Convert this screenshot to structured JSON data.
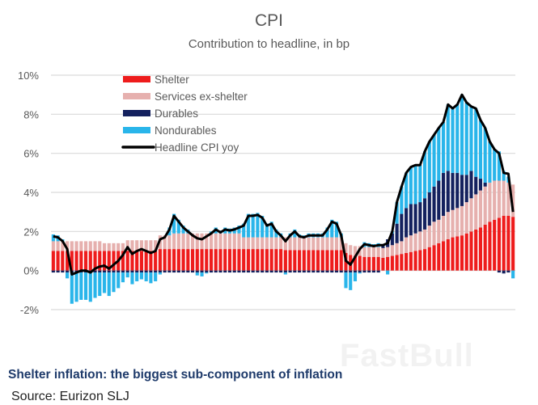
{
  "chart_data": {
    "type": "bar",
    "title": "CPI",
    "subtitle": "Contribution to headline, in bp",
    "ylim": [
      -2,
      10
    ],
    "yticks": [
      "-2%",
      "0%",
      "2%",
      "4%",
      "6%",
      "8%",
      "10%"
    ],
    "ytick_values": [
      -2,
      0,
      2,
      4,
      6,
      8,
      10
    ],
    "grid": true,
    "stacked": true,
    "legend_position": "top-left",
    "series": [
      {
        "name": "Shelter",
        "type": "bar",
        "color": "#ee1c1c",
        "values": [
          1.0,
          1.0,
          1.0,
          1.0,
          1.0,
          1.0,
          1.0,
          1.0,
          1.0,
          1.0,
          1.0,
          1.0,
          1.0,
          1.0,
          1.0,
          1.0,
          1.0,
          1.0,
          1.0,
          1.0,
          1.0,
          1.0,
          1.0,
          1.1,
          1.1,
          1.1,
          1.1,
          1.1,
          1.1,
          1.1,
          1.1,
          1.1,
          1.1,
          1.1,
          1.1,
          1.1,
          1.1,
          1.1,
          1.1,
          1.1,
          1.1,
          1.1,
          1.1,
          1.1,
          1.1,
          1.1,
          1.1,
          1.1,
          1.1,
          1.1,
          1.05,
          1.05,
          1.05,
          1.05,
          1.05,
          1.05,
          1.05,
          1.05,
          1.05,
          1.05,
          1.05,
          1.05,
          1.05,
          0.9,
          0.8,
          0.75,
          0.75,
          0.7,
          0.7,
          0.7,
          0.7,
          0.65,
          0.7,
          0.75,
          0.8,
          0.85,
          0.9,
          0.95,
          1.0,
          1.05,
          1.1,
          1.2,
          1.3,
          1.4,
          1.5,
          1.6,
          1.7,
          1.75,
          1.8,
          1.9,
          2.0,
          2.1,
          2.2,
          2.35,
          2.5,
          2.6,
          2.7,
          2.8,
          2.8,
          2.75
        ]
      },
      {
        "name": "Services ex-shelter",
        "type": "bar",
        "color": "#e6b0ae",
        "values": [
          0.5,
          0.5,
          0.5,
          0.5,
          0.5,
          0.5,
          0.5,
          0.5,
          0.5,
          0.5,
          0.5,
          0.4,
          0.4,
          0.4,
          0.4,
          0.4,
          0.55,
          0.55,
          0.55,
          0.55,
          0.55,
          0.55,
          0.55,
          0.7,
          0.7,
          0.7,
          0.8,
          0.8,
          0.8,
          0.8,
          0.8,
          0.8,
          0.8,
          0.8,
          0.8,
          0.8,
          0.8,
          0.8,
          0.8,
          0.8,
          0.8,
          0.6,
          0.6,
          0.6,
          0.6,
          0.6,
          0.6,
          0.6,
          0.6,
          0.6,
          0.65,
          0.65,
          0.65,
          0.65,
          0.65,
          0.65,
          0.65,
          0.65,
          0.65,
          0.65,
          0.65,
          0.65,
          0.65,
          0.5,
          0.5,
          0.5,
          0.5,
          0.5,
          0.5,
          0.5,
          0.5,
          0.5,
          0.5,
          0.55,
          0.6,
          0.65,
          0.8,
          0.85,
          0.9,
          0.95,
          1.0,
          1.1,
          1.2,
          1.2,
          1.3,
          1.4,
          1.4,
          1.45,
          1.5,
          1.6,
          1.7,
          1.8,
          1.9,
          1.95,
          2.0,
          2.0,
          1.9,
          1.8,
          1.7,
          1.65
        ]
      },
      {
        "name": "Durables",
        "type": "bar",
        "color": "#14215e",
        "values": [
          -0.1,
          -0.1,
          -0.1,
          -0.1,
          -0.1,
          -0.1,
          -0.1,
          -0.1,
          -0.1,
          -0.1,
          -0.1,
          -0.1,
          -0.1,
          -0.1,
          -0.1,
          -0.1,
          -0.1,
          -0.1,
          -0.1,
          -0.1,
          -0.1,
          -0.1,
          -0.1,
          -0.1,
          -0.1,
          -0.1,
          -0.1,
          -0.1,
          -0.1,
          -0.1,
          -0.1,
          -0.1,
          -0.1,
          -0.1,
          -0.1,
          -0.1,
          -0.1,
          -0.1,
          -0.1,
          -0.1,
          -0.1,
          -0.1,
          -0.1,
          -0.1,
          -0.1,
          -0.1,
          -0.1,
          -0.1,
          -0.1,
          -0.1,
          -0.1,
          -0.1,
          -0.1,
          -0.1,
          -0.1,
          -0.1,
          -0.1,
          -0.1,
          -0.1,
          -0.1,
          -0.1,
          -0.1,
          -0.1,
          -0.1,
          -0.1,
          -0.1,
          -0.1,
          -0.1,
          -0.1,
          -0.1,
          -0.1,
          0.1,
          0.4,
          0.6,
          1.0,
          1.4,
          1.5,
          1.6,
          1.5,
          1.5,
          1.6,
          1.7,
          1.8,
          2.0,
          2.2,
          2.1,
          1.9,
          1.8,
          1.6,
          1.4,
          1.4,
          0.9,
          0.6,
          0.2,
          0.0,
          0.0,
          -0.1,
          -0.15,
          -0.1,
          0.0
        ]
      },
      {
        "name": "Nondurables",
        "type": "bar",
        "color": "#29b5ea",
        "values": [
          0.35,
          0.3,
          0.1,
          -0.3,
          -1.6,
          -1.5,
          -1.4,
          -1.4,
          -1.5,
          -1.3,
          -1.2,
          -1.05,
          -1.2,
          -1.0,
          -0.8,
          -0.5,
          -0.25,
          -0.6,
          -0.45,
          -0.35,
          -0.45,
          -0.55,
          -0.45,
          -0.1,
          0.0,
          0.4,
          1.0,
          0.7,
          0.4,
          0.2,
          0.0,
          -0.15,
          -0.2,
          -0.05,
          0.1,
          0.3,
          0.15,
          0.3,
          0.25,
          0.3,
          0.4,
          0.7,
          1.2,
          1.2,
          1.25,
          1.1,
          0.7,
          0.8,
          0.4,
          0.2,
          -0.1,
          0.2,
          0.4,
          0.15,
          0.1,
          0.2,
          0.2,
          0.2,
          0.2,
          0.5,
          0.9,
          0.8,
          0.2,
          -0.8,
          -0.9,
          -0.45,
          -0.05,
          0.25,
          0.2,
          0.15,
          0.2,
          0.05,
          -0.2,
          0.1,
          1.1,
          1.4,
          1.8,
          1.9,
          2.0,
          1.9,
          2.4,
          2.6,
          2.65,
          2.7,
          2.6,
          3.4,
          3.3,
          3.5,
          4.1,
          3.7,
          3.3,
          3.5,
          3.0,
          2.8,
          2.1,
          1.6,
          1.5,
          0.5,
          0.3,
          -0.4
        ]
      },
      {
        "name": "Headline CPI yoy",
        "type": "line",
        "color": "#000000",
        "values": [
          1.75,
          1.7,
          1.5,
          1.1,
          -0.2,
          -0.1,
          0.0,
          0.0,
          -0.1,
          0.1,
          0.2,
          0.25,
          0.1,
          0.3,
          0.5,
          0.8,
          1.2,
          0.85,
          1.0,
          1.1,
          1.0,
          0.9,
          1.0,
          1.6,
          1.7,
          2.1,
          2.8,
          2.5,
          2.2,
          2.0,
          1.8,
          1.65,
          1.6,
          1.75,
          1.9,
          2.1,
          1.95,
          2.1,
          2.05,
          2.1,
          2.2,
          2.3,
          2.8,
          2.8,
          2.85,
          2.7,
          2.3,
          2.4,
          2.0,
          1.8,
          1.5,
          1.8,
          2.0,
          1.75,
          1.7,
          1.8,
          1.8,
          1.8,
          1.8,
          2.1,
          2.5,
          2.4,
          1.8,
          0.5,
          0.3,
          0.7,
          1.1,
          1.35,
          1.3,
          1.25,
          1.3,
          1.3,
          1.4,
          2.0,
          3.5,
          4.3,
          5.0,
          5.3,
          5.4,
          5.4,
          6.1,
          6.6,
          6.95,
          7.3,
          7.6,
          8.5,
          8.3,
          8.5,
          9.0,
          8.6,
          8.4,
          8.3,
          7.7,
          7.3,
          6.6,
          6.2,
          6.0,
          5.0,
          4.95,
          3.0
        ]
      }
    ]
  },
  "caption": "Shelter inflation: the biggest sub-component of inflation",
  "source": "Source: Eurizon SLJ",
  "watermark": "FastBull",
  "colors": {
    "grid": "#d9d9d9",
    "axis_text": "#595959",
    "caption": "#1f3b6b"
  }
}
